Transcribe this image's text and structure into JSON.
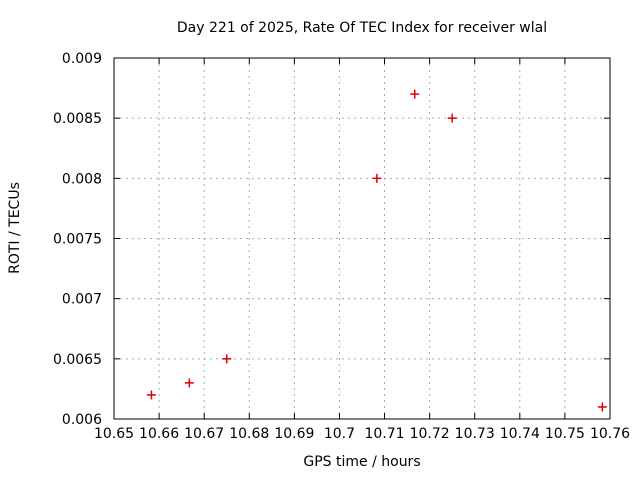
{
  "chart_data": {
    "type": "scatter",
    "title": "Day 221 of 2025, Rate Of TEC Index for receiver wlal",
    "xlabel": "GPS time / hours",
    "ylabel": "ROTI / TECUs",
    "xlim": [
      10.65,
      10.76
    ],
    "ylim": [
      0.006,
      0.009
    ],
    "xticks": [
      10.65,
      10.66,
      10.67,
      10.68,
      10.69,
      10.7,
      10.71,
      10.72,
      10.73,
      10.74,
      10.75,
      10.76
    ],
    "xtick_labels": [
      "10.65",
      "10.66",
      "10.67",
      "10.68",
      "10.69",
      "10.7",
      "10.71",
      "10.72",
      "10.73",
      "10.74",
      "10.75",
      "10.76"
    ],
    "yticks": [
      0.006,
      0.0065,
      0.007,
      0.0075,
      0.008,
      0.0085,
      0.009
    ],
    "ytick_labels": [
      "0.006",
      "0.0065",
      "0.007",
      "0.0075",
      "0.008",
      "0.0085",
      "0.009"
    ],
    "grid": true,
    "legend": "none",
    "marker": "plus",
    "marker_color": "#dd0000",
    "points": [
      {
        "x": 10.6583,
        "y": 0.0062
      },
      {
        "x": 10.6667,
        "y": 0.0063
      },
      {
        "x": 10.675,
        "y": 0.0065
      },
      {
        "x": 10.7083,
        "y": 0.008
      },
      {
        "x": 10.7167,
        "y": 0.0087
      },
      {
        "x": 10.725,
        "y": 0.0085
      },
      {
        "x": 10.7583,
        "y": 0.0061
      }
    ],
    "colors": {
      "background": "#ffffff",
      "axis": "#000000",
      "grid": "#aaaaaa",
      "text": "#000000",
      "marker": "#dd0000"
    }
  }
}
